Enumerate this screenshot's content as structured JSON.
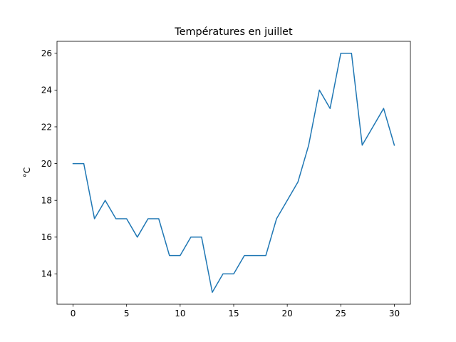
{
  "chart_data": {
    "type": "line",
    "title": "Températures en juillet",
    "xlabel": "",
    "ylabel": "°C",
    "xlim": [
      -1.5,
      31.5
    ],
    "ylim": [
      12.35,
      26.65
    ],
    "xticks": [
      0,
      5,
      10,
      15,
      20,
      25,
      30
    ],
    "yticks": [
      14,
      16,
      18,
      20,
      22,
      24,
      26
    ],
    "grid": false,
    "series": [
      {
        "color": "#1f77b4",
        "x": [
          0,
          1,
          2,
          3,
          4,
          5,
          6,
          7,
          8,
          9,
          10,
          11,
          12,
          13,
          14,
          15,
          16,
          17,
          18,
          19,
          20,
          21,
          22,
          23,
          24,
          25,
          26,
          27,
          28,
          29,
          30
        ],
        "values": [
          20,
          20,
          17,
          18,
          17,
          17,
          16,
          17,
          17,
          15,
          15,
          16,
          16,
          13,
          14,
          14,
          15,
          15,
          15,
          17,
          18,
          19,
          21,
          24,
          23,
          26,
          26,
          21,
          22,
          23,
          21
        ]
      }
    ]
  }
}
